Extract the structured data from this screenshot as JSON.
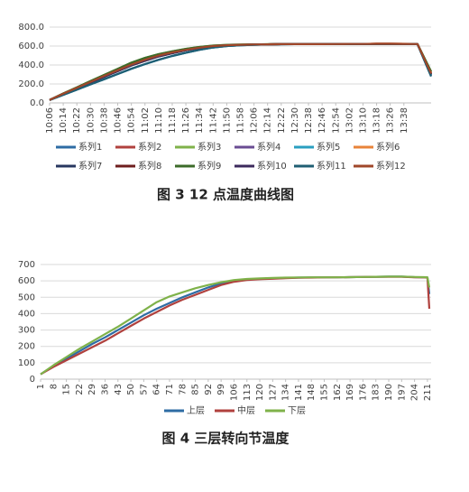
{
  "chart_data": [
    {
      "type": "line",
      "caption": "图 3 12 点温度曲线图",
      "categories": [
        "10:06",
        "10:14",
        "10:22",
        "10:30",
        "10:38",
        "10:46",
        "10:54",
        "11:02",
        "11:10",
        "11:18",
        "11:26",
        "11:34",
        "11:42",
        "11:50",
        "11:58",
        "12:06",
        "12:14",
        "12:22",
        "12:30",
        "12:38",
        "12:46",
        "12:54",
        "13:02",
        "13:10",
        "13:18",
        "13:26",
        "13:38",
        null,
        null
      ],
      "ylim": [
        0,
        800
      ],
      "yticks": [
        {
          "value": 0,
          "label": "0.0"
        },
        {
          "value": 200,
          "label": "200.0"
        },
        {
          "value": 400,
          "label": "400.0"
        },
        {
          "value": 600,
          "label": "600.0"
        },
        {
          "value": 800,
          "label": "800.0"
        }
      ],
      "grid": true,
      "legend": "bottom",
      "series": [
        {
          "name": "系列1",
          "color": "#2e6ca4",
          "values": [
            30,
            85,
            140,
            195,
            250,
            305,
            360,
            410,
            455,
            495,
            530,
            560,
            585,
            600,
            608,
            613,
            617,
            619,
            620,
            620,
            620,
            620,
            621,
            622,
            622,
            622,
            622,
            620,
            280
          ]
        },
        {
          "name": "系列2",
          "color": "#b0413e",
          "values": [
            30,
            98,
            160,
            222,
            285,
            345,
            405,
            455,
            500,
            533,
            560,
            583,
            600,
            609,
            613,
            616,
            618,
            620,
            620,
            620,
            620,
            621,
            622,
            622,
            624,
            624,
            623,
            621,
            310
          ]
        },
        {
          "name": "系列3",
          "color": "#7fb24a",
          "values": [
            30,
            100,
            165,
            230,
            295,
            360,
            425,
            475,
            515,
            545,
            570,
            590,
            605,
            612,
            615,
            617,
            619,
            620,
            620,
            620,
            621,
            621,
            622,
            623,
            623,
            623,
            623,
            621,
            330
          ]
        },
        {
          "name": "系列4",
          "color": "#6a4c93",
          "values": [
            30,
            95,
            155,
            215,
            275,
            335,
            395,
            445,
            490,
            525,
            555,
            580,
            598,
            608,
            612,
            615,
            618,
            620,
            620,
            620,
            620,
            620,
            622,
            622,
            622,
            622,
            622,
            620,
            300
          ]
        },
        {
          "name": "系列5",
          "color": "#2a9fc0",
          "values": [
            30,
            85,
            140,
            195,
            250,
            305,
            360,
            410,
            455,
            495,
            530,
            560,
            585,
            600,
            608,
            613,
            617,
            619,
            620,
            620,
            620,
            620,
            621,
            622,
            622,
            622,
            622,
            620,
            290
          ]
        },
        {
          "name": "系列6",
          "color": "#e8833a",
          "values": [
            30,
            95,
            155,
            215,
            275,
            335,
            395,
            445,
            490,
            525,
            555,
            580,
            598,
            608,
            612,
            615,
            618,
            620,
            620,
            620,
            620,
            620,
            622,
            622,
            625,
            625,
            624,
            622,
            320
          ]
        },
        {
          "name": "系列7",
          "color": "#27375f",
          "values": [
            30,
            95,
            155,
            215,
            275,
            335,
            395,
            445,
            490,
            525,
            555,
            580,
            598,
            608,
            612,
            615,
            618,
            620,
            620,
            620,
            620,
            620,
            622,
            622,
            622,
            622,
            622,
            620,
            300
          ]
        },
        {
          "name": "系列8",
          "color": "#6e1e1e",
          "values": [
            30,
            98,
            160,
            222,
            285,
            345,
            405,
            455,
            500,
            533,
            560,
            583,
            600,
            609,
            613,
            616,
            618,
            620,
            620,
            620,
            620,
            621,
            622,
            622,
            624,
            624,
            623,
            621,
            310
          ]
        },
        {
          "name": "系列9",
          "color": "#3c6b2a",
          "values": [
            30,
            100,
            165,
            230,
            295,
            360,
            425,
            475,
            515,
            545,
            570,
            590,
            605,
            612,
            615,
            617,
            619,
            620,
            620,
            620,
            621,
            621,
            622,
            623,
            623,
            623,
            623,
            621,
            330
          ]
        },
        {
          "name": "系列10",
          "color": "#3c2a5c",
          "values": [
            30,
            95,
            155,
            215,
            275,
            335,
            395,
            445,
            490,
            525,
            555,
            580,
            598,
            608,
            612,
            615,
            618,
            620,
            620,
            620,
            620,
            620,
            622,
            622,
            622,
            622,
            622,
            620,
            300
          ]
        },
        {
          "name": "系列11",
          "color": "#1f5e73",
          "values": [
            30,
            85,
            140,
            195,
            250,
            305,
            360,
            410,
            455,
            495,
            530,
            560,
            585,
            600,
            608,
            613,
            617,
            619,
            620,
            620,
            620,
            620,
            621,
            622,
            622,
            622,
            622,
            620,
            280
          ]
        },
        {
          "name": "系列12",
          "color": "#a0472a",
          "values": [
            30,
            98,
            160,
            222,
            285,
            345,
            405,
            455,
            500,
            533,
            560,
            583,
            600,
            609,
            613,
            616,
            618,
            620,
            620,
            620,
            620,
            621,
            622,
            622,
            624,
            624,
            623,
            621,
            310
          ]
        }
      ]
    },
    {
      "type": "line",
      "caption": "图 4 三层转向节温度",
      "x": [
        1,
        8,
        15,
        22,
        29,
        36,
        43,
        50,
        57,
        64,
        71,
        78,
        85,
        92,
        99,
        106,
        113,
        120,
        127,
        134,
        141,
        148,
        155,
        162,
        169,
        176,
        183,
        190,
        197,
        204,
        209,
        211,
        212
      ],
      "xlim": [
        1,
        213
      ],
      "xticks": [
        1,
        8,
        15,
        22,
        29,
        36,
        43,
        50,
        57,
        64,
        71,
        78,
        85,
        92,
        99,
        106,
        113,
        120,
        127,
        134,
        141,
        148,
        155,
        162,
        169,
        176,
        183,
        190,
        197,
        204,
        211
      ],
      "ylim": [
        0,
        700
      ],
      "yticks": [
        0,
        100,
        200,
        300,
        400,
        500,
        600,
        700
      ],
      "grid": true,
      "legend": "bottom",
      "series": [
        {
          "name": "上层",
          "color": "#2e6ca4",
          "values": [
            30,
            80,
            125,
            170,
            215,
            255,
            300,
            345,
            390,
            430,
            465,
            500,
            530,
            560,
            585,
            600,
            608,
            612,
            615,
            618,
            620,
            621,
            622,
            622,
            623,
            624,
            625,
            626,
            626,
            623,
            622,
            621,
            520
          ]
        },
        {
          "name": "中层",
          "color": "#b0413e",
          "values": [
            30,
            75,
            115,
            155,
            195,
            235,
            280,
            325,
            370,
            410,
            450,
            485,
            515,
            545,
            575,
            595,
            605,
            610,
            613,
            616,
            619,
            620,
            621,
            622,
            623,
            624,
            625,
            625,
            625,
            622,
            621,
            620,
            430
          ]
        },
        {
          "name": "下层",
          "color": "#7fb24a",
          "values": [
            30,
            85,
            135,
            185,
            230,
            275,
            320,
            370,
            420,
            470,
            505,
            530,
            555,
            575,
            592,
            605,
            612,
            615,
            618,
            620,
            621,
            622,
            622,
            622,
            623,
            624,
            625,
            626,
            626,
            624,
            623,
            622,
            560
          ]
        }
      ]
    }
  ]
}
